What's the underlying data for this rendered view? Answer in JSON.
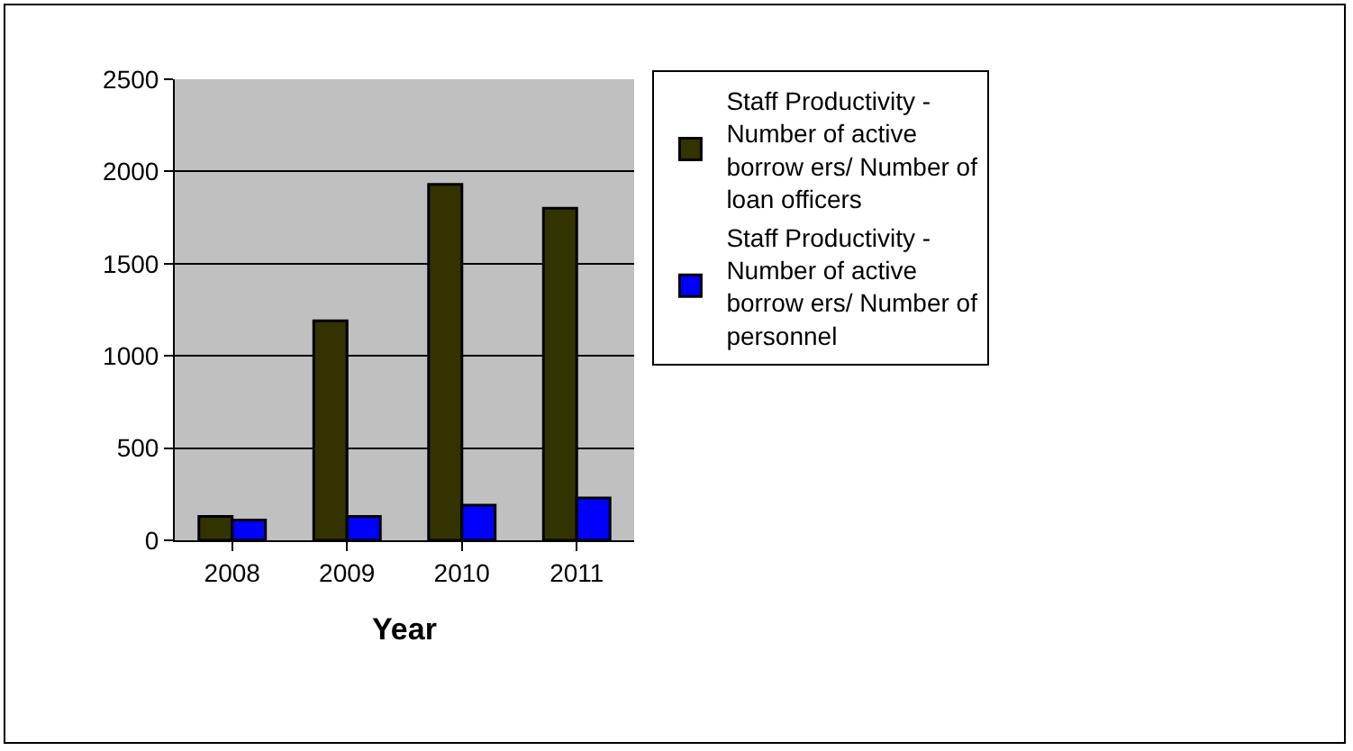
{
  "chart_data": {
    "type": "bar",
    "xlabel": "Year",
    "categories": [
      "2008",
      "2009",
      "2010",
      "2011"
    ],
    "series": [
      {
        "name": "Staff Productivity - Number of active borrow ers/ Number of loan officers",
        "color": "#333300",
        "values": [
          130,
          1190,
          1930,
          1800
        ]
      },
      {
        "name": "Staff Productivity - Number of active borrow ers/ Number of personnel",
        "color": "#0000ff",
        "values": [
          110,
          130,
          190,
          230
        ]
      }
    ],
    "ylim": [
      0,
      2500
    ],
    "yticks": [
      0,
      500,
      1000,
      1500,
      2000,
      2500
    ],
    "grid": "y",
    "legend": "right"
  }
}
